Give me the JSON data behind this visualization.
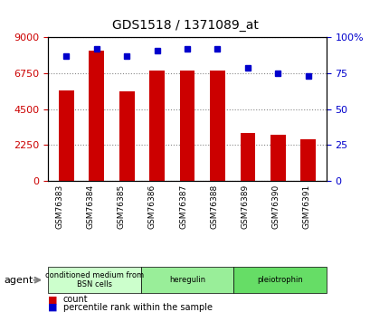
{
  "title": "GDS1518 / 1371089_at",
  "samples": [
    "GSM76383",
    "GSM76384",
    "GSM76385",
    "GSM76386",
    "GSM76387",
    "GSM76388",
    "GSM76389",
    "GSM76390",
    "GSM76391"
  ],
  "counts": [
    5700,
    8200,
    5600,
    6900,
    6900,
    6950,
    3000,
    2900,
    2600
  ],
  "percentiles": [
    87,
    92,
    87,
    91,
    92,
    92,
    79,
    75,
    73
  ],
  "groups": [
    {
      "label": "conditioned medium from\nBSN cells",
      "start": 0,
      "end": 3,
      "color": "#ccffcc"
    },
    {
      "label": "heregulin",
      "start": 3,
      "end": 6,
      "color": "#99ee99"
    },
    {
      "label": "pleiotrophin",
      "start": 6,
      "end": 9,
      "color": "#66dd66"
    }
  ],
  "ylim_left": [
    0,
    9000
  ],
  "ylim_right": [
    0,
    100
  ],
  "yticks_left": [
    0,
    2250,
    4500,
    6750,
    9000
  ],
  "ytick_labels_left": [
    "0",
    "2250",
    "4500",
    "6750",
    "9000"
  ],
  "yticks_right": [
    0,
    25,
    50,
    75,
    100
  ],
  "ytick_labels_right": [
    "0",
    "25",
    "50",
    "75",
    "100%"
  ],
  "bar_color": "#cc0000",
  "dot_color": "#0000cc",
  "grid_color": "#888888",
  "bg_color": "#ffffff",
  "plot_bg_color": "#ffffff",
  "left_axis_color": "#cc0000",
  "right_axis_color": "#0000cc",
  "agent_label": "agent",
  "legend_count_label": "count",
  "legend_percentile_label": "percentile rank within the sample"
}
